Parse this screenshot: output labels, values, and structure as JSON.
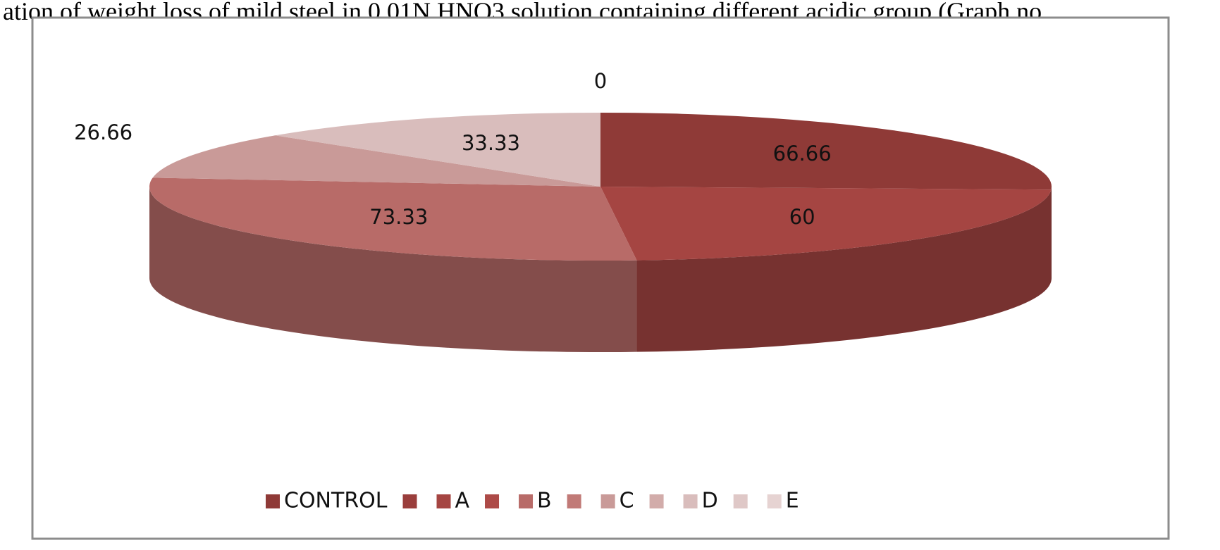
{
  "caption": "ation of weight loss of mild steel in 0.01N HNO3 solution containing different acidic group (Graph no.",
  "chart_data": {
    "type": "pie3d",
    "categories": [
      "CONTROL",
      null,
      "A",
      null,
      "B",
      null,
      "C",
      null,
      "D",
      null,
      "E"
    ],
    "values": [
      66.66,
      null,
      60,
      null,
      73.33,
      null,
      26.66,
      null,
      33.33,
      null,
      0
    ],
    "colors": [
      "#8f3a37",
      "#9a3e3c",
      "#a54542",
      "#ad4a47",
      "#b86b68",
      "#c17a77",
      "#c99a98",
      "#d2acaa",
      "#d9bdbc",
      "#dfc8c7",
      "#e6d3d2"
    ],
    "legend": "bottom"
  }
}
